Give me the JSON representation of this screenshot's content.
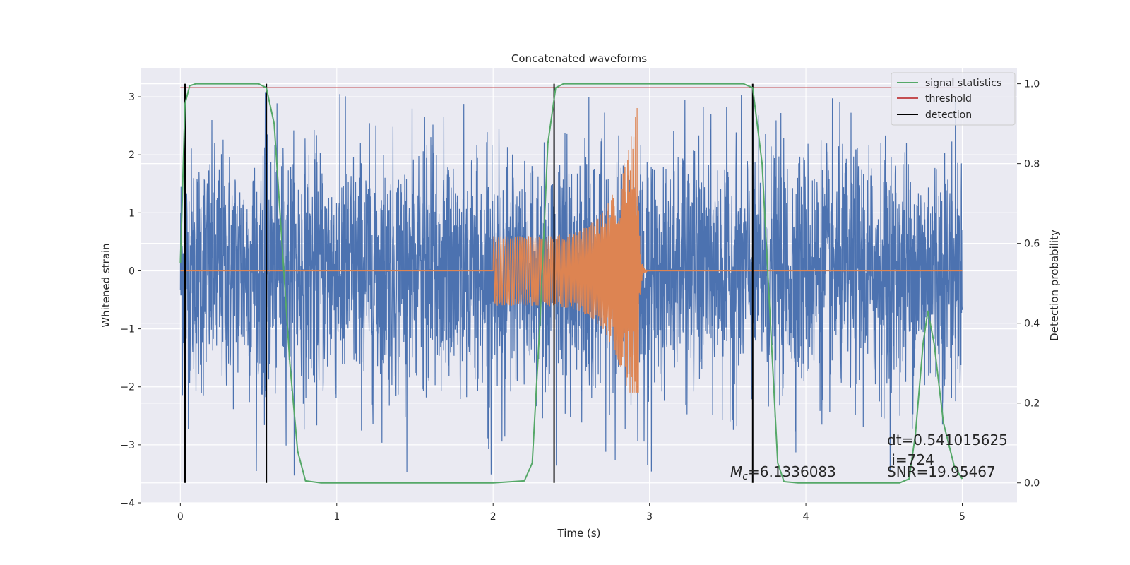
{
  "chart_data": {
    "type": "line",
    "title": "Concatenated waveforms",
    "xlabel": "Time (s)",
    "ylabel": "Whitened strain",
    "y2label": "Detection probability",
    "xlim": [
      -0.25,
      5.35
    ],
    "ylim": [
      -4.0,
      3.5
    ],
    "y2lim": [
      -0.05,
      1.04
    ],
    "xticks": [
      0,
      1,
      2,
      3,
      4,
      5
    ],
    "yticks": [
      -4,
      -3,
      -2,
      -1,
      0,
      1,
      2,
      3
    ],
    "y2ticks": [
      0.0,
      0.2,
      0.4,
      0.6,
      0.8,
      1.0
    ],
    "grid": true,
    "legend_position": "top-right",
    "legend": [
      {
        "name": "signal statistics",
        "color": "#55a868"
      },
      {
        "name": "threshold",
        "color": "#c44e52"
      },
      {
        "name": "detection",
        "color": "#000000"
      }
    ],
    "series": [
      {
        "name": "whitened strain",
        "axis": "left",
        "color": "#4c72b0",
        "description_range": [
          -3.6,
          3.1
        ],
        "x_range": [
          0,
          5
        ],
        "typical_amplitude": 1.3
      },
      {
        "name": "waveform template",
        "axis": "left",
        "color": "#dd8452",
        "x_start": 2.0,
        "x_peak": 2.93,
        "x_end": 3.0,
        "amplitude_start": 0.6,
        "amplitude_peak": 2.95,
        "amplitude_trough": -2.1
      },
      {
        "name": "signal statistics",
        "axis": "right",
        "color": "#55a868",
        "points": [
          [
            0.0,
            0.55
          ],
          [
            0.03,
            0.95
          ],
          [
            0.06,
            0.995
          ],
          [
            0.1,
            1.0
          ],
          [
            0.5,
            1.0
          ],
          [
            0.55,
            0.99
          ],
          [
            0.6,
            0.9
          ],
          [
            0.65,
            0.6
          ],
          [
            0.7,
            0.3
          ],
          [
            0.75,
            0.08
          ],
          [
            0.8,
            0.005
          ],
          [
            0.9,
            0.0
          ],
          [
            2.0,
            0.0
          ],
          [
            2.2,
            0.005
          ],
          [
            2.25,
            0.05
          ],
          [
            2.3,
            0.4
          ],
          [
            2.35,
            0.85
          ],
          [
            2.4,
            0.99
          ],
          [
            2.45,
            1.0
          ],
          [
            3.6,
            1.0
          ],
          [
            3.66,
            0.99
          ],
          [
            3.72,
            0.8
          ],
          [
            3.78,
            0.35
          ],
          [
            3.82,
            0.05
          ],
          [
            3.86,
            0.003
          ],
          [
            3.95,
            0.0
          ],
          [
            4.6,
            0.0
          ],
          [
            4.66,
            0.01
          ],
          [
            4.7,
            0.12
          ],
          [
            4.75,
            0.35
          ],
          [
            4.78,
            0.43
          ],
          [
            4.82,
            0.35
          ],
          [
            4.88,
            0.15
          ],
          [
            4.95,
            0.04
          ],
          [
            5.0,
            0.01
          ]
        ]
      },
      {
        "name": "threshold",
        "axis": "right",
        "color": "#c44e52",
        "value": 0.99,
        "x_range": [
          0,
          5
        ]
      },
      {
        "name": "detection",
        "axis": "right",
        "color": "#000000",
        "x": [
          0.03,
          0.55,
          2.39,
          3.66
        ],
        "range": [
          0.0,
          1.0
        ]
      }
    ],
    "annotations": [
      {
        "text": "dt=0.541015625",
        "x": 4.5,
        "y": 0.1
      },
      {
        "text": " i=724",
        "x": 4.5,
        "y": 0.055
      },
      {
        "text": "SNR=19.95467",
        "x": 4.5,
        "y": 0.025
      },
      {
        "text_main": "M",
        "text_sub": "c",
        "text_rest": "=6.1336083",
        "x": 3.5,
        "y": 0.025
      }
    ]
  }
}
